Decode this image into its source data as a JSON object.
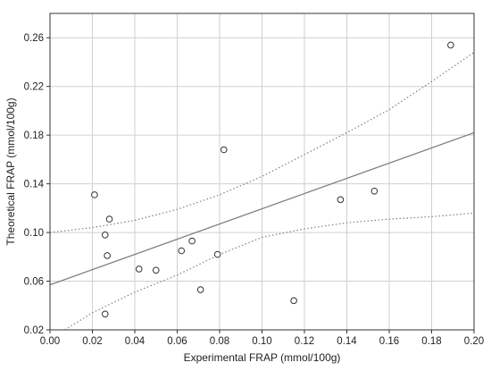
{
  "chart_data": {
    "type": "scatter",
    "title": "",
    "xlabel": "Experimental FRAP (mmol/100g)",
    "ylabel": "Theoretical FRAP (mmol/100g)",
    "xlim": [
      0.0,
      0.2
    ],
    "ylim": [
      0.02,
      0.28
    ],
    "xticks": [
      0.0,
      0.02,
      0.04,
      0.06,
      0.08,
      0.1,
      0.12,
      0.14,
      0.16,
      0.18,
      0.2
    ],
    "xtick_labels": [
      "0.00",
      "0.02",
      "0.04",
      "0.06",
      "0.08",
      "0.10",
      "0.12",
      "0.14",
      "0.16",
      "0.18",
      "0.20"
    ],
    "yticks": [
      0.02,
      0.06,
      0.1,
      0.14,
      0.18,
      0.22,
      0.26
    ],
    "ytick_labels": [
      "0.02",
      "0.06",
      "0.10",
      "0.14",
      "0.18",
      "0.22",
      "0.26"
    ],
    "grid": true,
    "legend": "none",
    "points": [
      {
        "x": 0.021,
        "y": 0.131
      },
      {
        "x": 0.026,
        "y": 0.098
      },
      {
        "x": 0.028,
        "y": 0.111
      },
      {
        "x": 0.027,
        "y": 0.081
      },
      {
        "x": 0.026,
        "y": 0.033
      },
      {
        "x": 0.042,
        "y": 0.07
      },
      {
        "x": 0.05,
        "y": 0.069
      },
      {
        "x": 0.062,
        "y": 0.085
      },
      {
        "x": 0.067,
        "y": 0.093
      },
      {
        "x": 0.071,
        "y": 0.053
      },
      {
        "x": 0.079,
        "y": 0.082
      },
      {
        "x": 0.082,
        "y": 0.168
      },
      {
        "x": 0.115,
        "y": 0.044
      },
      {
        "x": 0.137,
        "y": 0.127
      },
      {
        "x": 0.153,
        "y": 0.134
      },
      {
        "x": 0.189,
        "y": 0.254
      }
    ],
    "fit_line": {
      "x": [
        0.0,
        0.2
      ],
      "y": [
        0.057,
        0.182
      ]
    },
    "confidence_upper": {
      "x": [
        0.0,
        0.02,
        0.04,
        0.06,
        0.08,
        0.1,
        0.12,
        0.14,
        0.16,
        0.18,
        0.2
      ],
      "y": [
        0.1,
        0.104,
        0.11,
        0.119,
        0.131,
        0.146,
        0.164,
        0.182,
        0.201,
        0.224,
        0.248
      ]
    },
    "confidence_lower": {
      "x": [
        0.007,
        0.02,
        0.04,
        0.06,
        0.08,
        0.1,
        0.12,
        0.14,
        0.16,
        0.18,
        0.2
      ],
      "y": [
        0.02,
        0.034,
        0.051,
        0.065,
        0.082,
        0.096,
        0.103,
        0.108,
        0.111,
        0.113,
        0.116
      ]
    },
    "colors": {
      "fit_line": "#808080",
      "confidence_band": "#808080",
      "points": "#333333",
      "grid": "#d0d0d0",
      "frame": "#333333"
    }
  }
}
